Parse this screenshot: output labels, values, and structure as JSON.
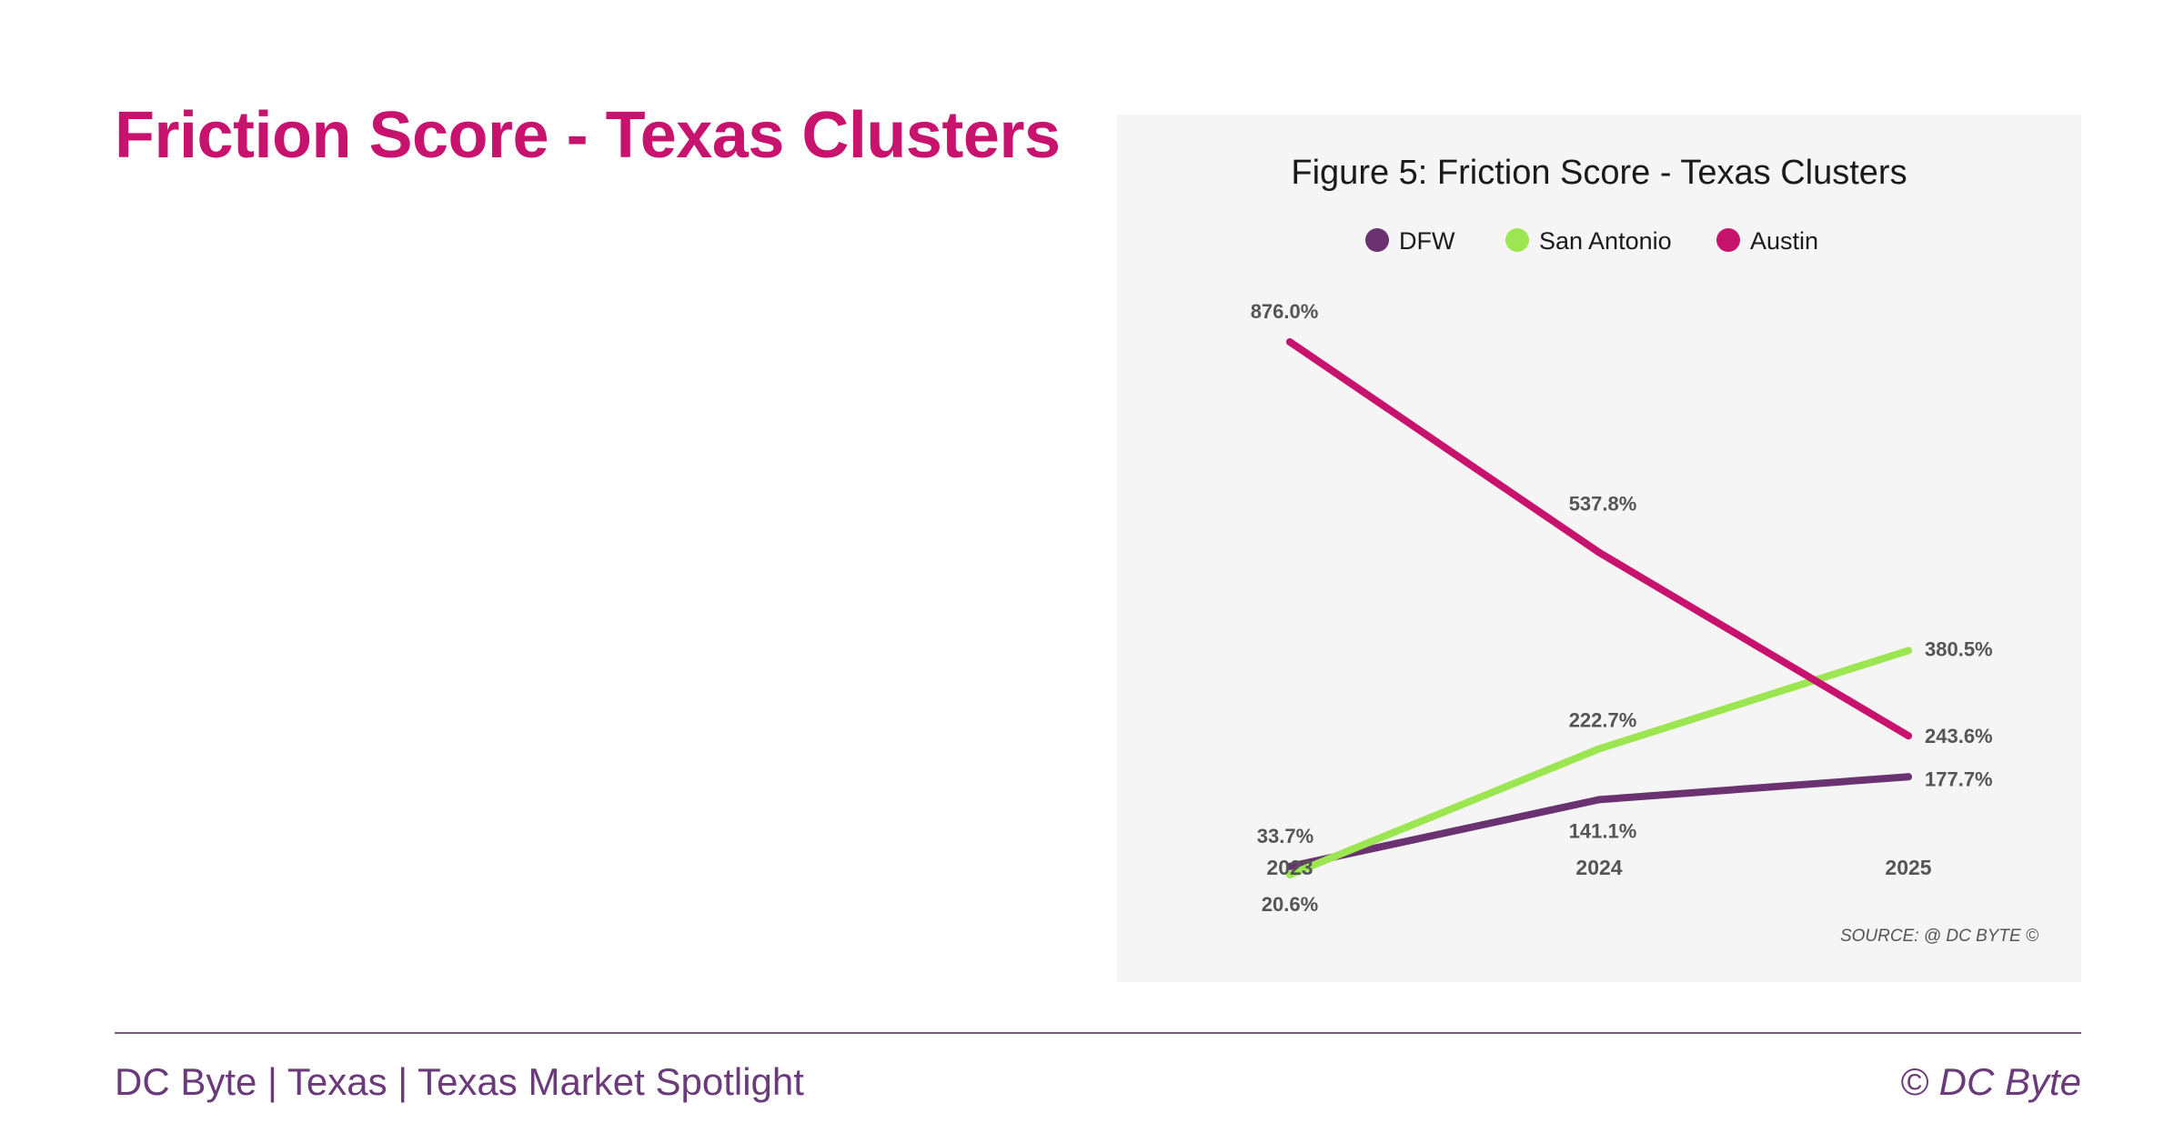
{
  "page": {
    "title": "Friction Score - Texas Clusters"
  },
  "footer": {
    "left_text": "DC Byte | Texas | Texas Market Spotlight",
    "right_text": "© DC Byte"
  },
  "chart_data": {
    "type": "line",
    "title": "Figure 5: Friction Score - Texas Clusters",
    "source": "SOURCE: @ DC BYTE ©",
    "x": [
      "2023",
      "2024",
      "2025"
    ],
    "ylim": [
      0,
      1000
    ],
    "grid": false,
    "legend_position": "top",
    "series": [
      {
        "name": "DFW",
        "color": "#6b3272",
        "values": [
          33.7,
          141.1,
          177.7
        ],
        "labels": [
          "33.7%",
          "141.1%",
          "177.7%"
        ]
      },
      {
        "name": "San Antonio",
        "color": "#9be651",
        "values": [
          20.6,
          222.7,
          380.5
        ],
        "labels": [
          "20.6%",
          "222.7%",
          "380.5%"
        ]
      },
      {
        "name": "Austin",
        "color": "#c8136e",
        "values": [
          876.0,
          537.8,
          243.6
        ],
        "labels": [
          "876.0%",
          "537.8%",
          "243.6%"
        ]
      }
    ]
  }
}
